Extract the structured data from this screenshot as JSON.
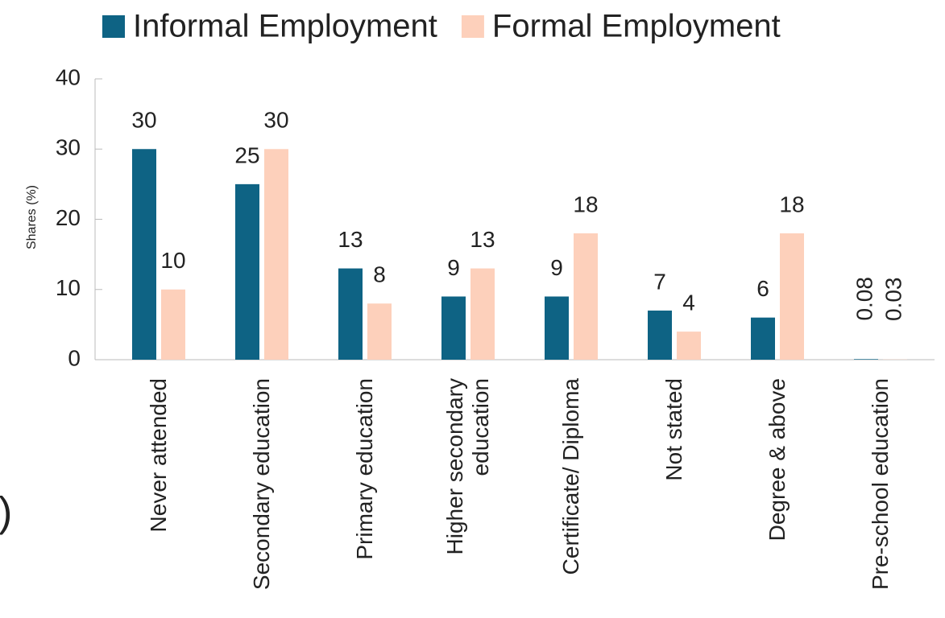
{
  "chart_data": {
    "type": "bar",
    "y_axis_label": "Shares (%)",
    "categories": [
      "Never attended",
      "Secondary education",
      "Primary education",
      "Higher secondary education",
      "Certificate/ Diploma",
      "Not stated",
      "Degree & above",
      "Pre-school education"
    ],
    "series": [
      {
        "name": "Informal Employment",
        "color": "#0e6384",
        "values": [
          30,
          25,
          13,
          9,
          9,
          7,
          6,
          0.08
        ]
      },
      {
        "name": "Formal Employment",
        "color": "#fdd0bb",
        "values": [
          10,
          30,
          8,
          13,
          18,
          4,
          18,
          0.03
        ]
      }
    ],
    "ylim": [
      0,
      40
    ],
    "yticks": [
      0,
      10,
      20,
      30,
      40
    ],
    "grid": false,
    "legend": "top"
  },
  "side_fragment": ")"
}
